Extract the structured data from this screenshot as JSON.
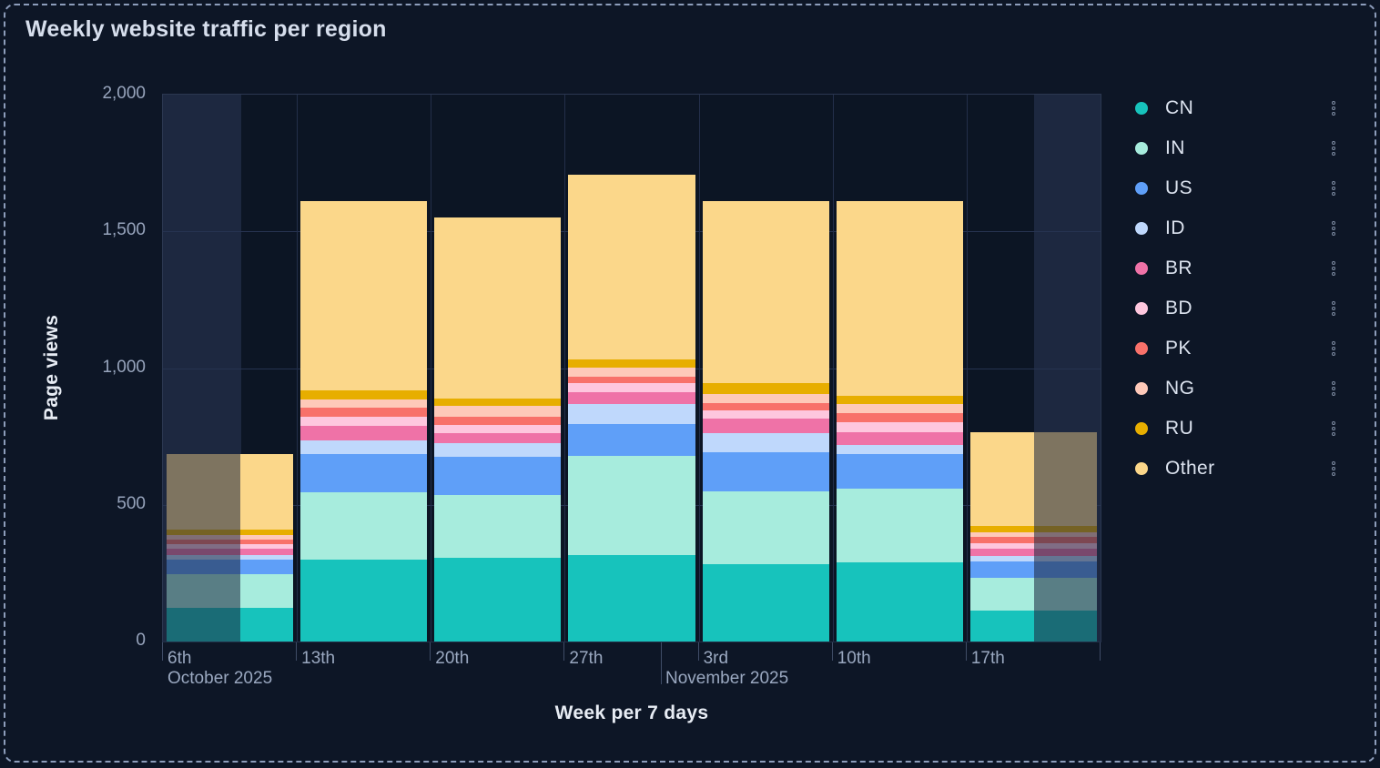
{
  "title": "Weekly website traffic per region",
  "y_axis": {
    "title": "Page views",
    "ticks": [
      {
        "label": "0",
        "value": 0
      },
      {
        "label": "500",
        "value": 500
      },
      {
        "label": "1,000",
        "value": 1000
      },
      {
        "label": "1,500",
        "value": 1500
      },
      {
        "label": "2,000",
        "value": 2000
      }
    ]
  },
  "x_axis": {
    "title": "Week per 7 days",
    "labels": [
      "6th",
      "13th",
      "20th",
      "27th",
      "3rd",
      "10th",
      "17th"
    ],
    "month_labels": [
      {
        "text": "October 2025"
      },
      {
        "text": "November 2025"
      }
    ]
  },
  "legend": {
    "items": [
      {
        "label": "CN",
        "color": "#17c3bc"
      },
      {
        "label": "IN",
        "color": "#a7ecdd"
      },
      {
        "label": "US",
        "color": "#5f9ff8"
      },
      {
        "label": "ID",
        "color": "#bfd8fc"
      },
      {
        "label": "BR",
        "color": "#ef72a7"
      },
      {
        "label": "BD",
        "color": "#fec7de"
      },
      {
        "label": "PK",
        "color": "#f8716a"
      },
      {
        "label": "NG",
        "color": "#fec9b9"
      },
      {
        "label": "RU",
        "color": "#e7ae00"
      },
      {
        "label": "Other",
        "color": "#fbd78a"
      }
    ],
    "menu_icon": "kebab-vertical-dots"
  },
  "chart_data": {
    "type": "bar",
    "stacked": true,
    "title": "Weekly website traffic per region",
    "xlabel": "Week per 7 days",
    "ylabel": "Page views",
    "ylim": [
      0,
      2000
    ],
    "grid": true,
    "legend_position": "right",
    "categories": [
      "Oct 6",
      "Oct 13",
      "Oct 20",
      "Oct 27",
      "Nov 3",
      "Nov 10",
      "Nov 17"
    ],
    "series": [
      {
        "name": "CN",
        "color": "#17c3bc",
        "values": [
          122,
          300,
          305,
          315,
          282,
          288,
          114
        ]
      },
      {
        "name": "IN",
        "color": "#a7ecdd",
        "values": [
          124,
          245,
          230,
          365,
          266,
          271,
          119
        ]
      },
      {
        "name": "US",
        "color": "#5f9ff8",
        "values": [
          55,
          140,
          140,
          117,
          144,
          125,
          59
        ]
      },
      {
        "name": "ID",
        "color": "#bfd8fc",
        "values": [
          15,
          50,
          50,
          71,
          69,
          36,
          22
        ]
      },
      {
        "name": "BR",
        "color": "#ef72a7",
        "values": [
          22,
          54,
          36,
          45,
          55,
          44,
          27
        ]
      },
      {
        "name": "BD",
        "color": "#fec7de",
        "values": [
          17,
          32,
          31,
          31,
          31,
          39,
          18
        ]
      },
      {
        "name": "PK",
        "color": "#f8716a",
        "values": [
          17,
          36,
          31,
          24,
          24,
          33,
          24
        ]
      },
      {
        "name": "NG",
        "color": "#fec9b9",
        "values": [
          17,
          27,
          38,
          33,
          34,
          33,
          17
        ]
      },
      {
        "name": "RU",
        "color": "#e7ae00",
        "values": [
          22,
          36,
          27,
          31,
          40,
          31,
          22
        ]
      },
      {
        "name": "Other",
        "color": "#fbd78a",
        "values": [
          275,
          690,
          662,
          675,
          665,
          710,
          345
        ]
      }
    ],
    "totals": [
      686,
      1610,
      1550,
      1707,
      1610,
      1610,
      767
    ],
    "notes": "First (Oct 6) and last (Nov 17) bars are partially faded: left 58% of the first bar and right 50% of the last bar are dimmed under lighter edge bands."
  }
}
